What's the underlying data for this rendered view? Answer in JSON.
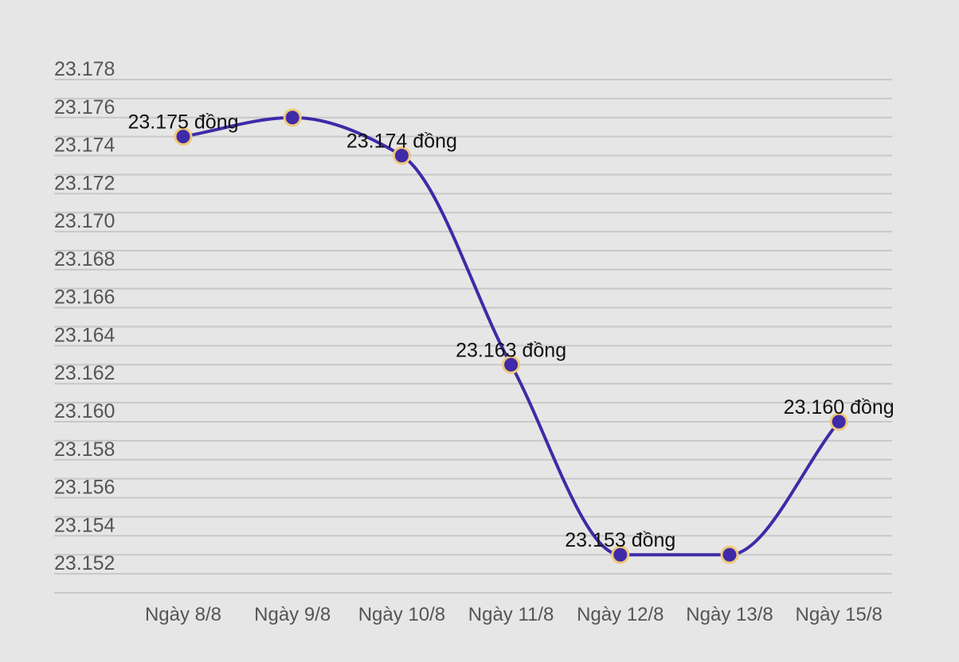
{
  "chart_data": {
    "type": "line",
    "categories": [
      "Ngày 8/8",
      "Ngày 9/8",
      "Ngày 10/8",
      "Ngày 11/8",
      "Ngày 12/8",
      "Ngày 13/8",
      "Ngày 15/8"
    ],
    "series": [
      {
        "values": [
          23175,
          23176,
          23174,
          23163,
          23153,
          23153,
          23160
        ],
        "color": "#3f2aa8",
        "marker_fill": "#3f2aa8",
        "marker_stroke": "#f0c878"
      }
    ],
    "yticks": [
      "23.178",
      "23.176",
      "23.174",
      "23.172",
      "23.170",
      "23.168",
      "23.166",
      "23.164",
      "23.162",
      "23.160",
      "23.158",
      "23.156",
      "23.154",
      "23.152"
    ],
    "ylim": [
      23151,
      23178
    ],
    "grid": true,
    "data_labels": [
      {
        "index": 0,
        "text": "23.175 đồng"
      },
      {
        "index": 2,
        "text": "23.174 đồng"
      },
      {
        "index": 3,
        "text": "23.163 đồng"
      },
      {
        "index": 4,
        "text": "23.153 đồng"
      },
      {
        "index": 6,
        "text": "23.160 đồng"
      }
    ],
    "background": "#e6e6e6"
  }
}
